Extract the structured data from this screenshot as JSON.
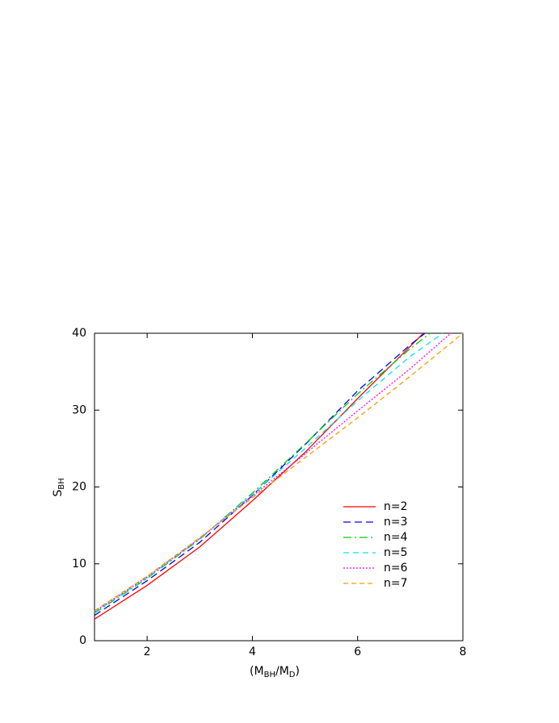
{
  "chart_data": {
    "type": "line",
    "x_label": [
      "(M",
      "BH",
      "/M",
      "D",
      ")"
    ],
    "y_label": [
      "S",
      "BH"
    ],
    "xlim": [
      1,
      8
    ],
    "xticks": [
      2,
      4,
      6,
      8
    ],
    "ylim": [
      0,
      40
    ],
    "yticks": [
      0,
      10,
      20,
      30,
      40
    ],
    "grid": false,
    "legend": "lower right",
    "series": [
      {
        "name": "n=2",
        "color": "#ff0000",
        "x": [
          1,
          2,
          3,
          4,
          5,
          6,
          7,
          7.25
        ],
        "values": [
          2.8,
          7.2,
          12.2,
          18.2,
          24.5,
          31.5,
          38.3,
          40
        ]
      },
      {
        "name": "n=3",
        "color": "#0000ff",
        "x": [
          1,
          2,
          3,
          4,
          5,
          6,
          7,
          7.28
        ],
        "values": [
          3.3,
          7.8,
          12.8,
          18.9,
          25.5,
          32.5,
          38.5,
          40
        ]
      },
      {
        "name": "n=4",
        "color": "#00cc00",
        "x": [
          1,
          2,
          3,
          4,
          5,
          6,
          7,
          7.38
        ],
        "values": [
          3.6,
          8.1,
          13.2,
          19.2,
          25.6,
          32.1,
          38.0,
          40
        ]
      },
      {
        "name": "n=5",
        "color": "#00e5ee",
        "x": [
          1,
          2,
          3,
          4,
          5,
          6,
          7,
          7.62
        ],
        "values": [
          3.7,
          8.2,
          13.3,
          19.0,
          25.0,
          31.2,
          37.0,
          40
        ]
      },
      {
        "name": "n=6",
        "color": "#ff00ff",
        "x": [
          1,
          2,
          3,
          4,
          5,
          6,
          7,
          7.77
        ],
        "values": [
          3.8,
          8.3,
          13.3,
          18.8,
          24.3,
          29.9,
          35.4,
          40
        ]
      },
      {
        "name": "n=7",
        "color": "#ff9900",
        "x": [
          1,
          2,
          3,
          4,
          5,
          6,
          7,
          8
        ],
        "values": [
          3.9,
          8.4,
          13.4,
          18.6,
          23.8,
          29.0,
          34.4,
          40
        ]
      }
    ]
  }
}
